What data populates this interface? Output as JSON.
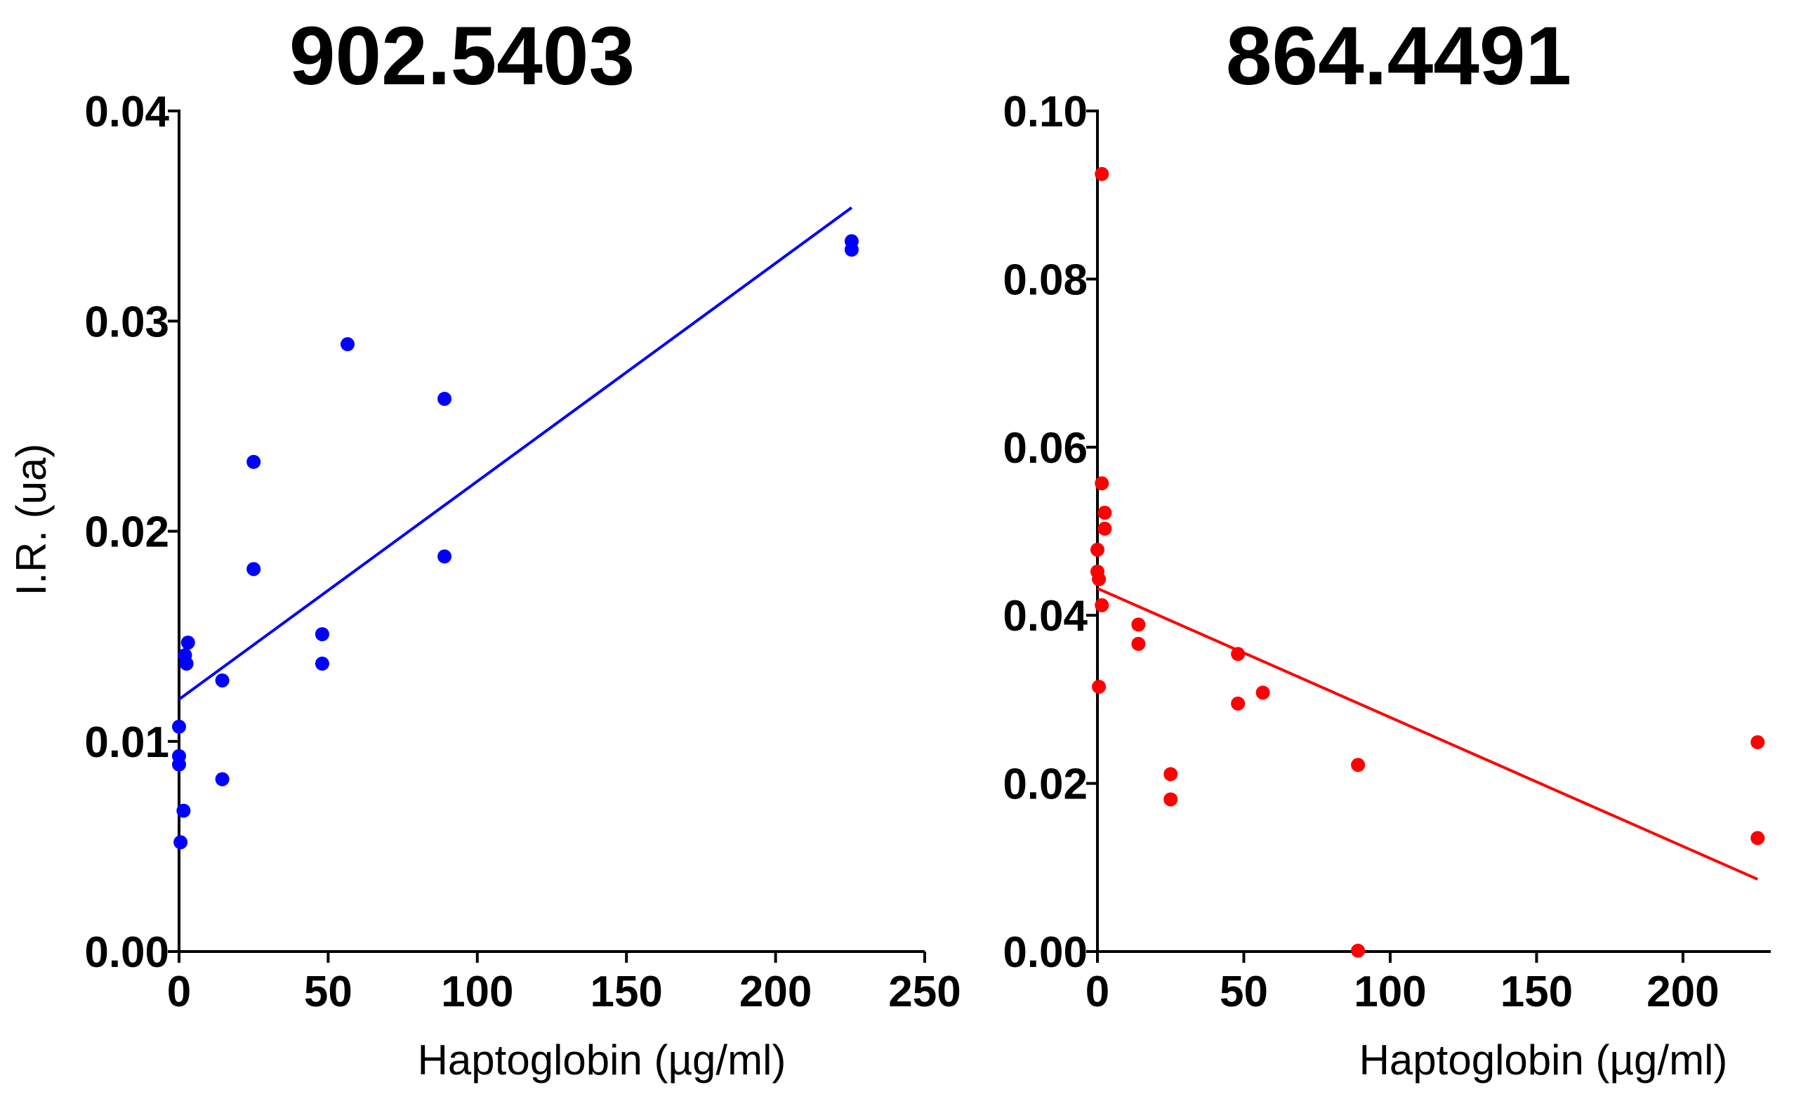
{
  "chart_data": [
    {
      "type": "scatter",
      "title": "902.5403",
      "xlabel": "Haptoglobin (µg/ml)",
      "ylabel": "I.R. (ua)",
      "color": "#0000ff",
      "xlim": [
        0,
        250
      ],
      "ylim": [
        0,
        0.04
      ],
      "xticks": [
        0,
        50,
        100,
        150,
        200,
        250
      ],
      "xtick_labels": [
        "0",
        "50",
        "100",
        "150",
        "200",
        "250"
      ],
      "yticks": [
        0,
        0.01,
        0.02,
        0.03,
        0.04
      ],
      "ytick_labels": [
        "0.00",
        "0.01",
        "0.02",
        "0.03",
        "0.04"
      ],
      "points": [
        {
          "x": 0,
          "y": 0.0107
        },
        {
          "x": 0,
          "y": 0.0093
        },
        {
          "x": 0,
          "y": 0.0089
        },
        {
          "x": 0.5,
          "y": 0.0052
        },
        {
          "x": 1.5,
          "y": 0.0067
        },
        {
          "x": 2,
          "y": 0.0141
        },
        {
          "x": 2.5,
          "y": 0.0137
        },
        {
          "x": 3,
          "y": 0.0147
        },
        {
          "x": 14.5,
          "y": 0.0129
        },
        {
          "x": 14.5,
          "y": 0.0082
        },
        {
          "x": 25,
          "y": 0.0233
        },
        {
          "x": 25,
          "y": 0.0182
        },
        {
          "x": 48,
          "y": 0.0151
        },
        {
          "x": 48,
          "y": 0.0137
        },
        {
          "x": 56.5,
          "y": 0.0289
        },
        {
          "x": 89,
          "y": 0.0263
        },
        {
          "x": 89,
          "y": 0.0188
        },
        {
          "x": 225.5,
          "y": 0.0338
        },
        {
          "x": 225.5,
          "y": 0.0334
        }
      ],
      "fit_line": {
        "x": [
          0,
          225.5
        ],
        "y": [
          0.012,
          0.0354
        ]
      }
    },
    {
      "type": "scatter",
      "title": "864.4491",
      "xlabel": "Haptoglobin (µg/ml)",
      "ylabel": "",
      "color": "#ff0000",
      "xlim": [
        0,
        230
      ],
      "ylim": [
        0,
        0.1
      ],
      "xticks": [
        0,
        50,
        100,
        150,
        200
      ],
      "xtick_labels": [
        "0",
        "50",
        "100",
        "150",
        "200"
      ],
      "yticks": [
        0,
        0.02,
        0.04,
        0.06,
        0.08,
        0.1
      ],
      "ytick_labels": [
        "0.00",
        "0.02",
        "0.04",
        "0.06",
        "0.08",
        "0.10"
      ],
      "points": [
        {
          "x": 1.5,
          "y": 0.0925
        },
        {
          "x": 1.5,
          "y": 0.0557
        },
        {
          "x": 2.5,
          "y": 0.0522
        },
        {
          "x": 2.5,
          "y": 0.0503
        },
        {
          "x": 0,
          "y": 0.0478
        },
        {
          "x": 0,
          "y": 0.0452
        },
        {
          "x": 0.5,
          "y": 0.0443
        },
        {
          "x": 1.5,
          "y": 0.0412
        },
        {
          "x": 0.5,
          "y": 0.0315
        },
        {
          "x": 14,
          "y": 0.0389
        },
        {
          "x": 14,
          "y": 0.0366
        },
        {
          "x": 25,
          "y": 0.0211
        },
        {
          "x": 25,
          "y": 0.0181
        },
        {
          "x": 48,
          "y": 0.0354
        },
        {
          "x": 48,
          "y": 0.0295
        },
        {
          "x": 56.5,
          "y": 0.0308
        },
        {
          "x": 89,
          "y": 0.0222
        },
        {
          "x": 89,
          "y": 0.0001
        },
        {
          "x": 225.5,
          "y": 0.0249
        },
        {
          "x": 225.5,
          "y": 0.0135
        }
      ],
      "fit_line": {
        "x": [
          0,
          225.5
        ],
        "y": [
          0.0432,
          0.0086
        ]
      }
    }
  ]
}
